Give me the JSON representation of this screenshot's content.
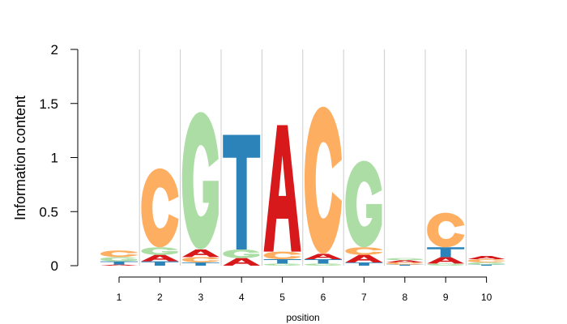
{
  "chart_data": {
    "type": "sequence-logo",
    "title": "",
    "xlabel": "position",
    "ylabel": "Information content",
    "ylim": [
      0,
      2
    ],
    "y_ticks": [
      "0",
      "0.5",
      "1",
      "1.5",
      "2"
    ],
    "x_ticks": [
      "1",
      "2",
      "3",
      "4",
      "5",
      "6",
      "7",
      "8",
      "9",
      "10"
    ],
    "grid": "vertical lines at positions",
    "colors": {
      "A": "#d7191c",
      "C": "#fdae61",
      "G": "#abdda4",
      "T": "#2b83ba"
    },
    "positions": [
      {
        "position": 1,
        "letters": [
          {
            "base": "A",
            "height": 0.01
          },
          {
            "base": "T",
            "height": 0.03
          },
          {
            "base": "G",
            "height": 0.04
          },
          {
            "base": "C",
            "height": 0.06
          }
        ]
      },
      {
        "position": 2,
        "letters": [
          {
            "base": "T",
            "height": 0.04
          },
          {
            "base": "A",
            "height": 0.06
          },
          {
            "base": "G",
            "height": 0.07
          },
          {
            "base": "C",
            "height": 0.73
          }
        ]
      },
      {
        "position": 3,
        "letters": [
          {
            "base": "T",
            "height": 0.03
          },
          {
            "base": "C",
            "height": 0.05
          },
          {
            "base": "A",
            "height": 0.07
          },
          {
            "base": "G",
            "height": 1.27
          }
        ]
      },
      {
        "position": 4,
        "letters": [
          {
            "base": "A",
            "height": 0.07
          },
          {
            "base": "G",
            "height": 0.08
          },
          {
            "base": "T",
            "height": 1.06
          }
        ]
      },
      {
        "position": 5,
        "letters": [
          {
            "base": "G",
            "height": 0.02
          },
          {
            "base": "T",
            "height": 0.04
          },
          {
            "base": "C",
            "height": 0.07
          },
          {
            "base": "A",
            "height": 1.17
          }
        ]
      },
      {
        "position": 6,
        "letters": [
          {
            "base": "G",
            "height": 0.02
          },
          {
            "base": "T",
            "height": 0.04
          },
          {
            "base": "A",
            "height": 0.05
          },
          {
            "base": "C",
            "height": 1.36
          }
        ]
      },
      {
        "position": 7,
        "letters": [
          {
            "base": "T",
            "height": 0.03
          },
          {
            "base": "A",
            "height": 0.07
          },
          {
            "base": "C",
            "height": 0.07
          },
          {
            "base": "G",
            "height": 0.8
          }
        ]
      },
      {
        "position": 8,
        "letters": [
          {
            "base": "T",
            "height": 0.01
          },
          {
            "base": "C",
            "height": 0.02
          },
          {
            "base": "A",
            "height": 0.02
          },
          {
            "base": "G",
            "height": 0.02
          }
        ]
      },
      {
        "position": 9,
        "letters": [
          {
            "base": "G",
            "height": 0.02
          },
          {
            "base": "A",
            "height": 0.06
          },
          {
            "base": "T",
            "height": 0.09
          },
          {
            "base": "C",
            "height": 0.32
          }
        ]
      },
      {
        "position": 10,
        "letters": [
          {
            "base": "T",
            "height": 0.01
          },
          {
            "base": "G",
            "height": 0.02
          },
          {
            "base": "C",
            "height": 0.03
          },
          {
            "base": "A",
            "height": 0.03
          }
        ]
      }
    ]
  }
}
